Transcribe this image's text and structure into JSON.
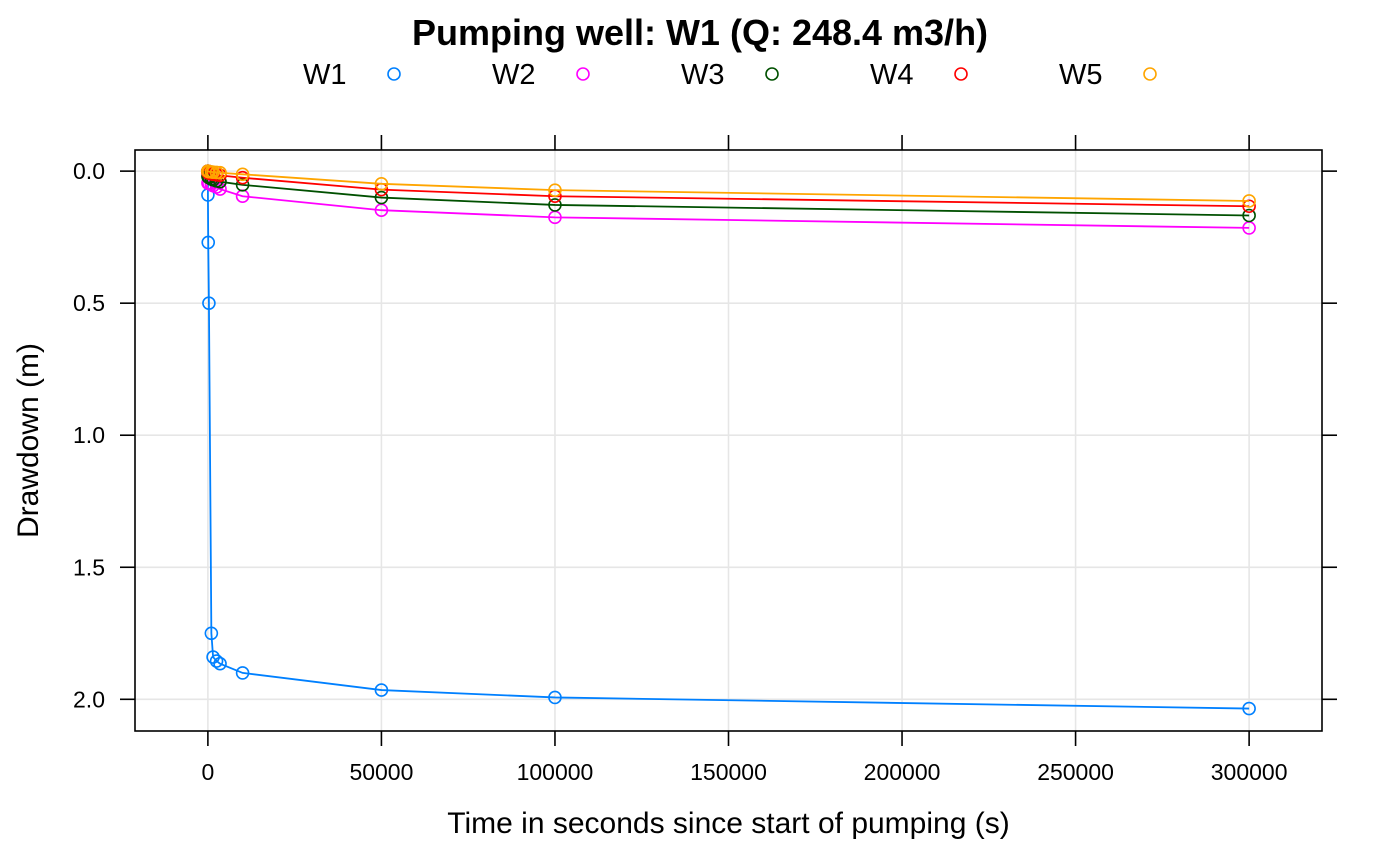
{
  "chart_data": {
    "type": "line",
    "title": "Pumping well: W1 (Q: 248.4 m3/h)",
    "xlabel": "Time in seconds since start of pumping (s)",
    "ylabel": "Drawdown (m)",
    "xlim": [
      -21000,
      321000
    ],
    "ylim": [
      2.12,
      -0.08
    ],
    "y_reversed": true,
    "grid": true,
    "legend_position": "top",
    "xticks": [
      0,
      50000,
      100000,
      150000,
      200000,
      250000,
      300000
    ],
    "xtick_labels": [
      "0",
      "50000",
      "100000",
      "150000",
      "200000",
      "250000",
      "300000"
    ],
    "yticks": [
      0.0,
      0.5,
      1.0,
      1.5,
      2.0
    ],
    "ytick_labels": [
      "0.0",
      "0.5",
      "1.0",
      "1.5",
      "2.0"
    ],
    "series": [
      {
        "name": "W1",
        "color": "#0080ff",
        "x": [
          1,
          10,
          100,
          300,
          1000,
          1500,
          2500,
          3500,
          10000,
          50000,
          100000,
          300000
        ],
        "y": [
          0.0,
          0.09,
          0.27,
          0.5,
          1.75,
          1.84,
          1.855,
          1.865,
          1.9,
          1.965,
          1.993,
          2.035
        ]
      },
      {
        "name": "W2",
        "color": "#ff00ff",
        "x": [
          1,
          10,
          100,
          300,
          1000,
          1500,
          2500,
          3500,
          10000,
          50000,
          100000,
          300000
        ],
        "y": [
          0.0,
          0.045,
          0.045,
          0.047,
          0.05,
          0.055,
          0.06,
          0.068,
          0.095,
          0.148,
          0.175,
          0.215
        ]
      },
      {
        "name": "W3",
        "color": "#005000",
        "x": [
          1,
          10,
          100,
          300,
          1000,
          1500,
          2500,
          3500,
          10000,
          50000,
          100000,
          300000
        ],
        "y": [
          0.0,
          0.02,
          0.022,
          0.025,
          0.03,
          0.033,
          0.037,
          0.04,
          0.052,
          0.1,
          0.128,
          0.168
        ]
      },
      {
        "name": "W4",
        "color": "#ff0000",
        "x": [
          1,
          10,
          100,
          300,
          1000,
          1500,
          2500,
          3500,
          10000,
          50000,
          100000,
          300000
        ],
        "y": [
          0.0,
          0.005,
          0.006,
          0.008,
          0.01,
          0.012,
          0.014,
          0.016,
          0.025,
          0.07,
          0.095,
          0.133
        ]
      },
      {
        "name": "W5",
        "color": "#ffa500",
        "x": [
          1,
          10,
          100,
          300,
          1000,
          1500,
          2500,
          3500,
          10000,
          50000,
          100000,
          300000
        ],
        "y": [
          0.0,
          0.0,
          0.001,
          0.002,
          0.003,
          0.004,
          0.005,
          0.006,
          0.012,
          0.048,
          0.072,
          0.113
        ]
      }
    ]
  }
}
